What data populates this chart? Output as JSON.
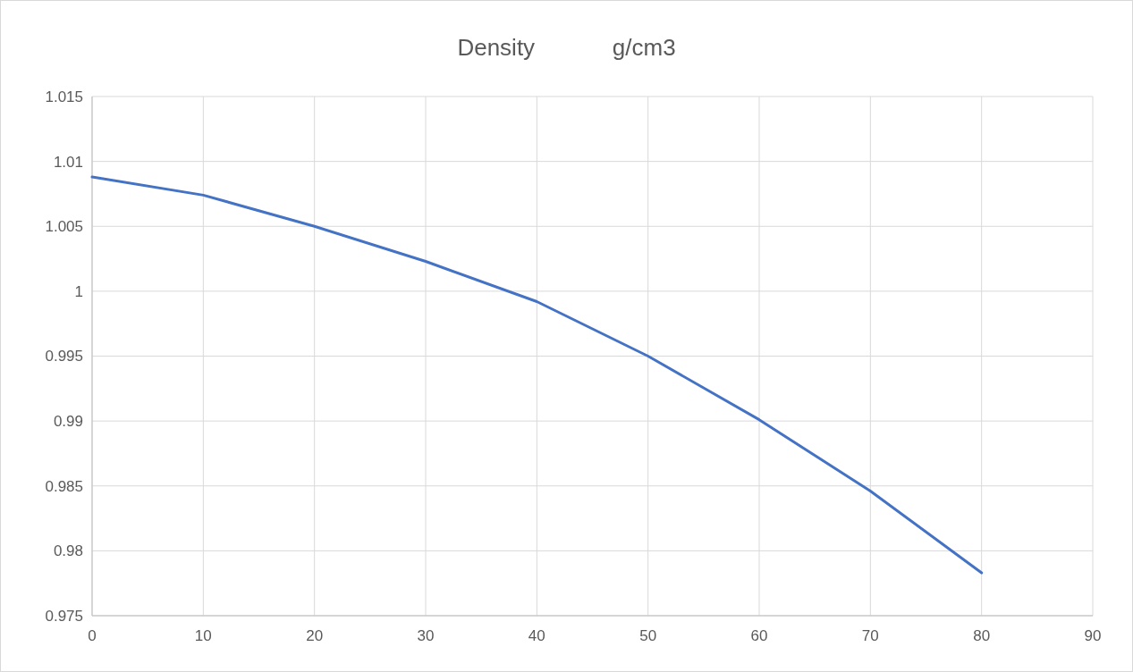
{
  "chart_data": {
    "type": "line",
    "title": "Density            g/cm3",
    "x": [
      0,
      10,
      20,
      30,
      40,
      50,
      60,
      70,
      80
    ],
    "series": [
      {
        "color": "#4472c4",
        "values": [
          1.0088,
          1.0074,
          1.005,
          1.0023,
          0.9992,
          0.995,
          0.9901,
          0.9846,
          0.9783
        ]
      }
    ],
    "xlim": [
      0,
      90
    ],
    "xticks": [
      0,
      10,
      20,
      30,
      40,
      50,
      60,
      70,
      80,
      90
    ],
    "ylim": [
      0.975,
      1.015
    ],
    "yticks": [
      0.975,
      0.98,
      0.985,
      0.99,
      0.995,
      1,
      1.005,
      1.01,
      1.015
    ],
    "grid": true,
    "marker": "none",
    "line_style": "solid"
  }
}
